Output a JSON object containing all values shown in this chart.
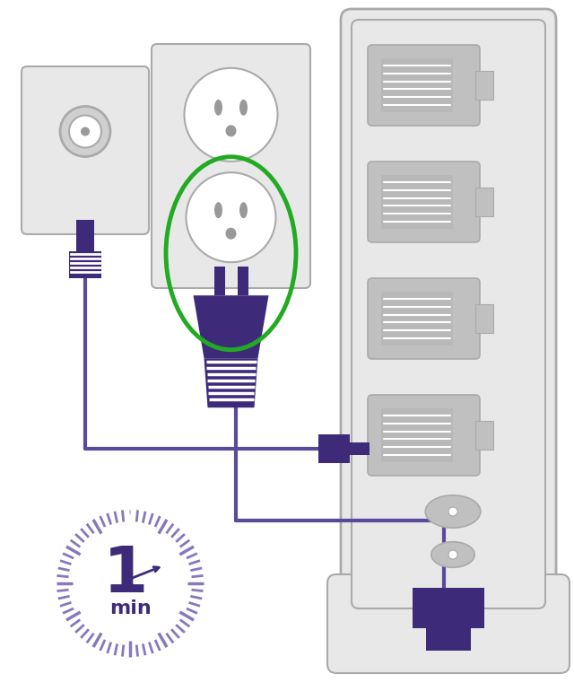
{
  "bg_color": "#ffffff",
  "purple_dark": "#3d2b7a",
  "purple_mid": "#5b4a9b",
  "purple_light": "#8878bb",
  "gray_light": "#e8e8e8",
  "gray_mid": "#c0c0c0",
  "gray_dark": "#999999",
  "gray_border": "#aaaaaa",
  "green_circle": "#22aa22",
  "white": "#ffffff",
  "timer_text_1": "1",
  "timer_text_min": "min"
}
